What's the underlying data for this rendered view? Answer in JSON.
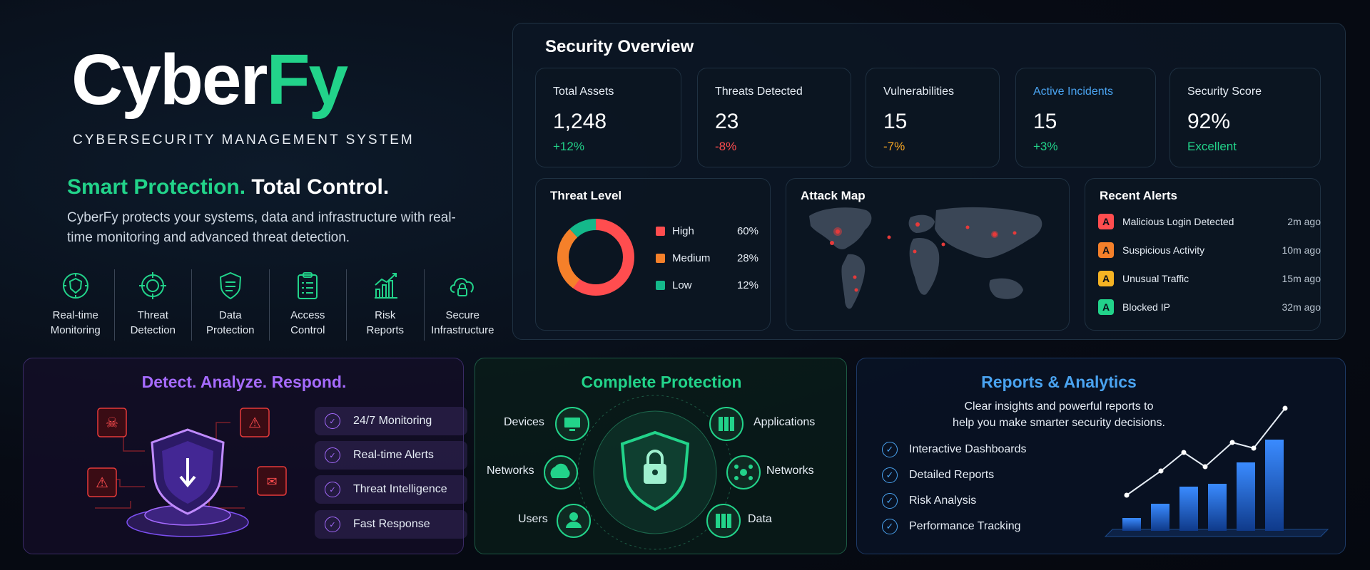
{
  "brand": {
    "name_part1": "Cyber",
    "name_part2": "Fy",
    "subtitle": "CYBERSECURITY MANAGEMENT SYSTEM",
    "headline_green": "Smart Protection.",
    "headline_white": "Total Control.",
    "description": "CyberFy protects your systems, data and infrastructure with real-time monitoring and advanced threat detection."
  },
  "features": [
    {
      "label": "Real-time\nMonitoring",
      "icon": "radar-shield-icon"
    },
    {
      "label": "Threat\nDetection",
      "icon": "target-icon"
    },
    {
      "label": "Data\nProtection",
      "icon": "shield-list-icon"
    },
    {
      "label": "Access\nControl",
      "icon": "clipboard-icon"
    },
    {
      "label": "Risk\nReports",
      "icon": "bar-chart-icon"
    },
    {
      "label": "Secure\nInfrastructure",
      "icon": "cloud-lock-icon"
    }
  ],
  "overview": {
    "title": "Security Overview",
    "stats": [
      {
        "label": "Total Assets",
        "value": "1,248",
        "delta": "+12%",
        "delta_color": "#22d38a"
      },
      {
        "label": "Threats Detected",
        "value": "23",
        "delta": "-8%",
        "delta_color": "#ff4d4f"
      },
      {
        "label": "Vulnerabilities",
        "value": "15",
        "delta": "-7%",
        "delta_color": "#f5a623"
      },
      {
        "label": "Active Incidents",
        "value": "15",
        "delta": "+3%",
        "delta_color": "#22d38a"
      },
      {
        "label": "Security Score",
        "value": "92%",
        "delta": "Excellent",
        "delta_color": "#22d38a"
      }
    ],
    "threat_level": {
      "title": "Threat Level",
      "items": [
        {
          "label": "High",
          "value": "60%",
          "fraction": 0.6,
          "color": "#ff4d4f"
        },
        {
          "label": "Medium",
          "value": "28%",
          "fraction": 0.28,
          "color": "#f5802a"
        },
        {
          "label": "Low",
          "value": "12%",
          "fraction": 0.12,
          "color": "#14b88a"
        }
      ]
    },
    "attack_map": {
      "title": "Attack Map"
    },
    "recent_alerts": {
      "title": "Recent Alerts",
      "items": [
        {
          "label": "Malicious Login Detected",
          "time": "2m ago",
          "color": "#ff4d4f"
        },
        {
          "label": "Suspicious Activity",
          "time": "10m ago",
          "color": "#f5802a"
        },
        {
          "label": "Unusual Traffic",
          "time": "15m ago",
          "color": "#f5b323"
        },
        {
          "label": "Blocked IP",
          "time": "32m ago",
          "color": "#22d38a"
        }
      ]
    }
  },
  "detect": {
    "title": "Detect. Analyze. Respond.",
    "items": [
      "24/7 Monitoring",
      "Real-time Alerts",
      "Threat Intelligence",
      "Fast Response"
    ]
  },
  "protection": {
    "title": "Complete Protection",
    "left_nodes": [
      "Devices",
      "Networks",
      "Users"
    ],
    "right_nodes": [
      "Applications",
      "Networks",
      "Data"
    ]
  },
  "reports": {
    "title": "Reports & Analytics",
    "description_line1": "Clear insights and powerful reports to",
    "description_line2": "help you make smarter security decisions.",
    "items": [
      "Interactive Dashboards",
      "Detailed Reports",
      "Risk Analysis",
      "Performance Tracking"
    ]
  },
  "colors": {
    "accent_green": "#22d38a",
    "accent_purple": "#a66bff",
    "accent_blue": "#4aa3f0"
  }
}
